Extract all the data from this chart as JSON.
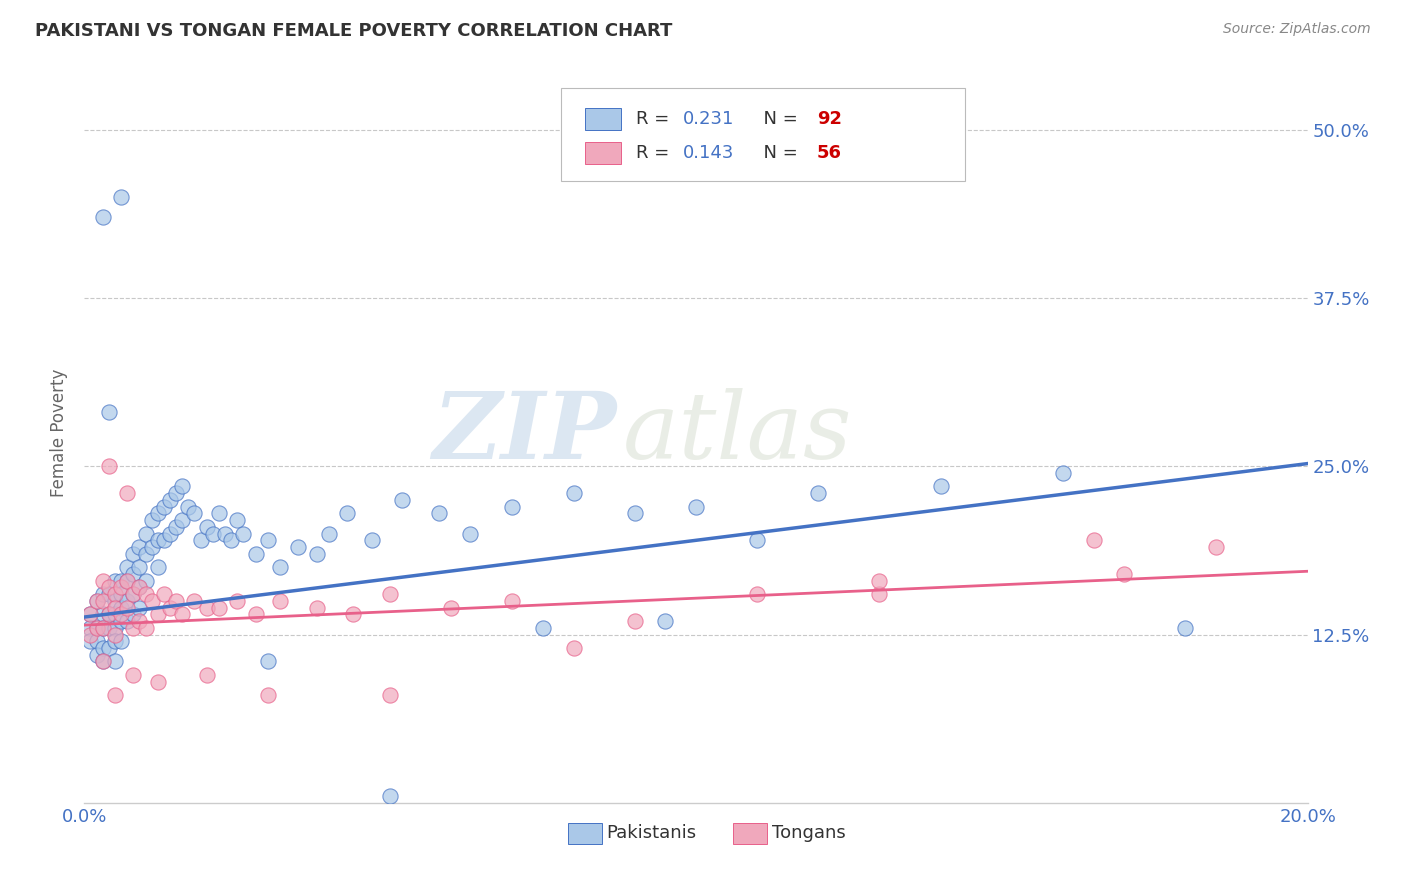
{
  "title": "PAKISTANI VS TONGAN FEMALE POVERTY CORRELATION CHART",
  "source": "Source: ZipAtlas.com",
  "ylabel": "Female Poverty",
  "xlim": [
    0.0,
    0.2
  ],
  "ylim": [
    0.0,
    0.55
  ],
  "xticks": [
    0.0,
    0.05,
    0.1,
    0.15,
    0.2
  ],
  "xtick_labels": [
    "0.0%",
    "",
    "",
    "",
    "20.0%"
  ],
  "ytick_labels": [
    "12.5%",
    "25.0%",
    "37.5%",
    "50.0%"
  ],
  "ytick_values": [
    0.125,
    0.25,
    0.375,
    0.5
  ],
  "background_color": "#ffffff",
  "grid_color": "#c8c8c8",
  "pakistani_face_color": "#aac8e8",
  "tongan_face_color": "#f0a8bc",
  "pakistani_line_color": "#4472c4",
  "tongan_line_color": "#e8608a",
  "tick_color": "#4472c4",
  "legend_r_color": "#4472c4",
  "legend_n_color": "#cc0000",
  "watermark_zip": "ZIP",
  "watermark_atlas": "atlas",
  "pakistani_R": "0.231",
  "pakistani_N": "92",
  "tongan_R": "0.143",
  "tongan_N": "56",
  "pak_trend_x0": 0.0,
  "pak_trend_y0": 0.138,
  "pak_trend_x1": 0.2,
  "pak_trend_y1": 0.252,
  "ton_trend_x0": 0.0,
  "ton_trend_y0": 0.132,
  "ton_trend_x1": 0.2,
  "ton_trend_y1": 0.172,
  "pakistani_scatter_x": [
    0.001,
    0.001,
    0.001,
    0.002,
    0.002,
    0.002,
    0.002,
    0.003,
    0.003,
    0.003,
    0.003,
    0.003,
    0.004,
    0.004,
    0.004,
    0.004,
    0.005,
    0.005,
    0.005,
    0.005,
    0.005,
    0.005,
    0.006,
    0.006,
    0.006,
    0.006,
    0.006,
    0.007,
    0.007,
    0.007,
    0.007,
    0.008,
    0.008,
    0.008,
    0.008,
    0.009,
    0.009,
    0.009,
    0.009,
    0.01,
    0.01,
    0.01,
    0.011,
    0.011,
    0.012,
    0.012,
    0.012,
    0.013,
    0.013,
    0.014,
    0.014,
    0.015,
    0.015,
    0.016,
    0.016,
    0.017,
    0.018,
    0.019,
    0.02,
    0.021,
    0.022,
    0.023,
    0.024,
    0.025,
    0.026,
    0.028,
    0.03,
    0.032,
    0.035,
    0.038,
    0.04,
    0.043,
    0.047,
    0.052,
    0.058,
    0.063,
    0.07,
    0.08,
    0.09,
    0.1,
    0.11,
    0.12,
    0.14,
    0.16,
    0.003,
    0.006,
    0.004,
    0.03,
    0.05,
    0.075,
    0.095,
    0.18
  ],
  "pakistani_scatter_y": [
    0.14,
    0.13,
    0.12,
    0.15,
    0.13,
    0.12,
    0.11,
    0.155,
    0.14,
    0.13,
    0.115,
    0.105,
    0.155,
    0.14,
    0.13,
    0.115,
    0.165,
    0.15,
    0.14,
    0.13,
    0.12,
    0.105,
    0.165,
    0.155,
    0.145,
    0.135,
    0.12,
    0.175,
    0.165,
    0.15,
    0.135,
    0.185,
    0.17,
    0.155,
    0.14,
    0.19,
    0.175,
    0.16,
    0.145,
    0.2,
    0.185,
    0.165,
    0.21,
    0.19,
    0.215,
    0.195,
    0.175,
    0.22,
    0.195,
    0.225,
    0.2,
    0.23,
    0.205,
    0.235,
    0.21,
    0.22,
    0.215,
    0.195,
    0.205,
    0.2,
    0.215,
    0.2,
    0.195,
    0.21,
    0.2,
    0.185,
    0.195,
    0.175,
    0.19,
    0.185,
    0.2,
    0.215,
    0.195,
    0.225,
    0.215,
    0.2,
    0.22,
    0.23,
    0.215,
    0.22,
    0.195,
    0.23,
    0.235,
    0.245,
    0.435,
    0.45,
    0.29,
    0.105,
    0.005,
    0.13,
    0.135,
    0.13
  ],
  "tongan_scatter_x": [
    0.001,
    0.001,
    0.002,
    0.002,
    0.003,
    0.003,
    0.003,
    0.004,
    0.004,
    0.005,
    0.005,
    0.005,
    0.006,
    0.006,
    0.007,
    0.007,
    0.008,
    0.008,
    0.009,
    0.009,
    0.01,
    0.01,
    0.011,
    0.012,
    0.013,
    0.014,
    0.015,
    0.016,
    0.018,
    0.02,
    0.022,
    0.025,
    0.028,
    0.032,
    0.038,
    0.044,
    0.05,
    0.06,
    0.07,
    0.09,
    0.11,
    0.13,
    0.165,
    0.185,
    0.003,
    0.005,
    0.008,
    0.012,
    0.02,
    0.03,
    0.05,
    0.08,
    0.13,
    0.17,
    0.004,
    0.007
  ],
  "tongan_scatter_y": [
    0.14,
    0.125,
    0.15,
    0.13,
    0.165,
    0.15,
    0.13,
    0.16,
    0.14,
    0.155,
    0.145,
    0.125,
    0.16,
    0.14,
    0.165,
    0.145,
    0.155,
    0.13,
    0.16,
    0.135,
    0.155,
    0.13,
    0.15,
    0.14,
    0.155,
    0.145,
    0.15,
    0.14,
    0.15,
    0.145,
    0.145,
    0.15,
    0.14,
    0.15,
    0.145,
    0.14,
    0.155,
    0.145,
    0.15,
    0.135,
    0.155,
    0.155,
    0.195,
    0.19,
    0.105,
    0.08,
    0.095,
    0.09,
    0.095,
    0.08,
    0.08,
    0.115,
    0.165,
    0.17,
    0.25,
    0.23
  ]
}
